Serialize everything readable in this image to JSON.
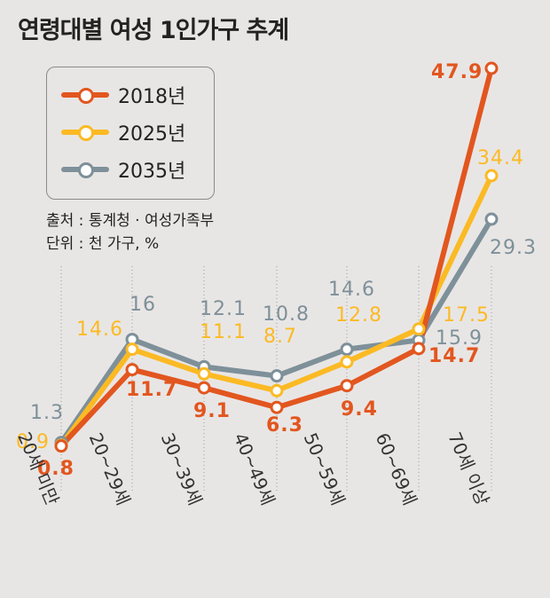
{
  "title": "연령대별 여성 1인가구 추계",
  "source": "출처 : 통계청 · 여성가족부",
  "unit": "단위 : 천 가구, %",
  "colors": {
    "s2018": "#e2561f",
    "s2025": "#fbba24",
    "s2035": "#7e9099"
  },
  "chart_data": {
    "type": "line",
    "title": "연령대별 여성 1인가구 추계",
    "categories": [
      "20세 미만",
      "20~29세",
      "30~39세",
      "40~49세",
      "50~59세",
      "60~69세",
      "70세 이상"
    ],
    "series": [
      {
        "name": "2018년",
        "values": [
          0.8,
          11.7,
          9.1,
          6.3,
          9.4,
          14.7,
          47.9
        ]
      },
      {
        "name": "2025년",
        "values": [
          0.9,
          14.6,
          11.1,
          8.7,
          12.8,
          17.5,
          34.4
        ]
      },
      {
        "name": "2035년",
        "values": [
          1.3,
          16,
          12.1,
          10.8,
          14.6,
          15.9,
          29.3
        ]
      }
    ],
    "value_labels": [
      [
        "0.8",
        "11.7",
        "9.1",
        "6.3",
        "9.4",
        "14.7",
        "47.9"
      ],
      [
        "0.9",
        "14.6",
        "11.1",
        "8.7",
        "12.8",
        "17.5",
        "34.4"
      ],
      [
        "1.3",
        "16",
        "12.1",
        "10.8",
        "14.6",
        "15.9",
        "29.3"
      ]
    ],
    "grid": "dotted vertical lines at categories",
    "legend": "top-left"
  }
}
